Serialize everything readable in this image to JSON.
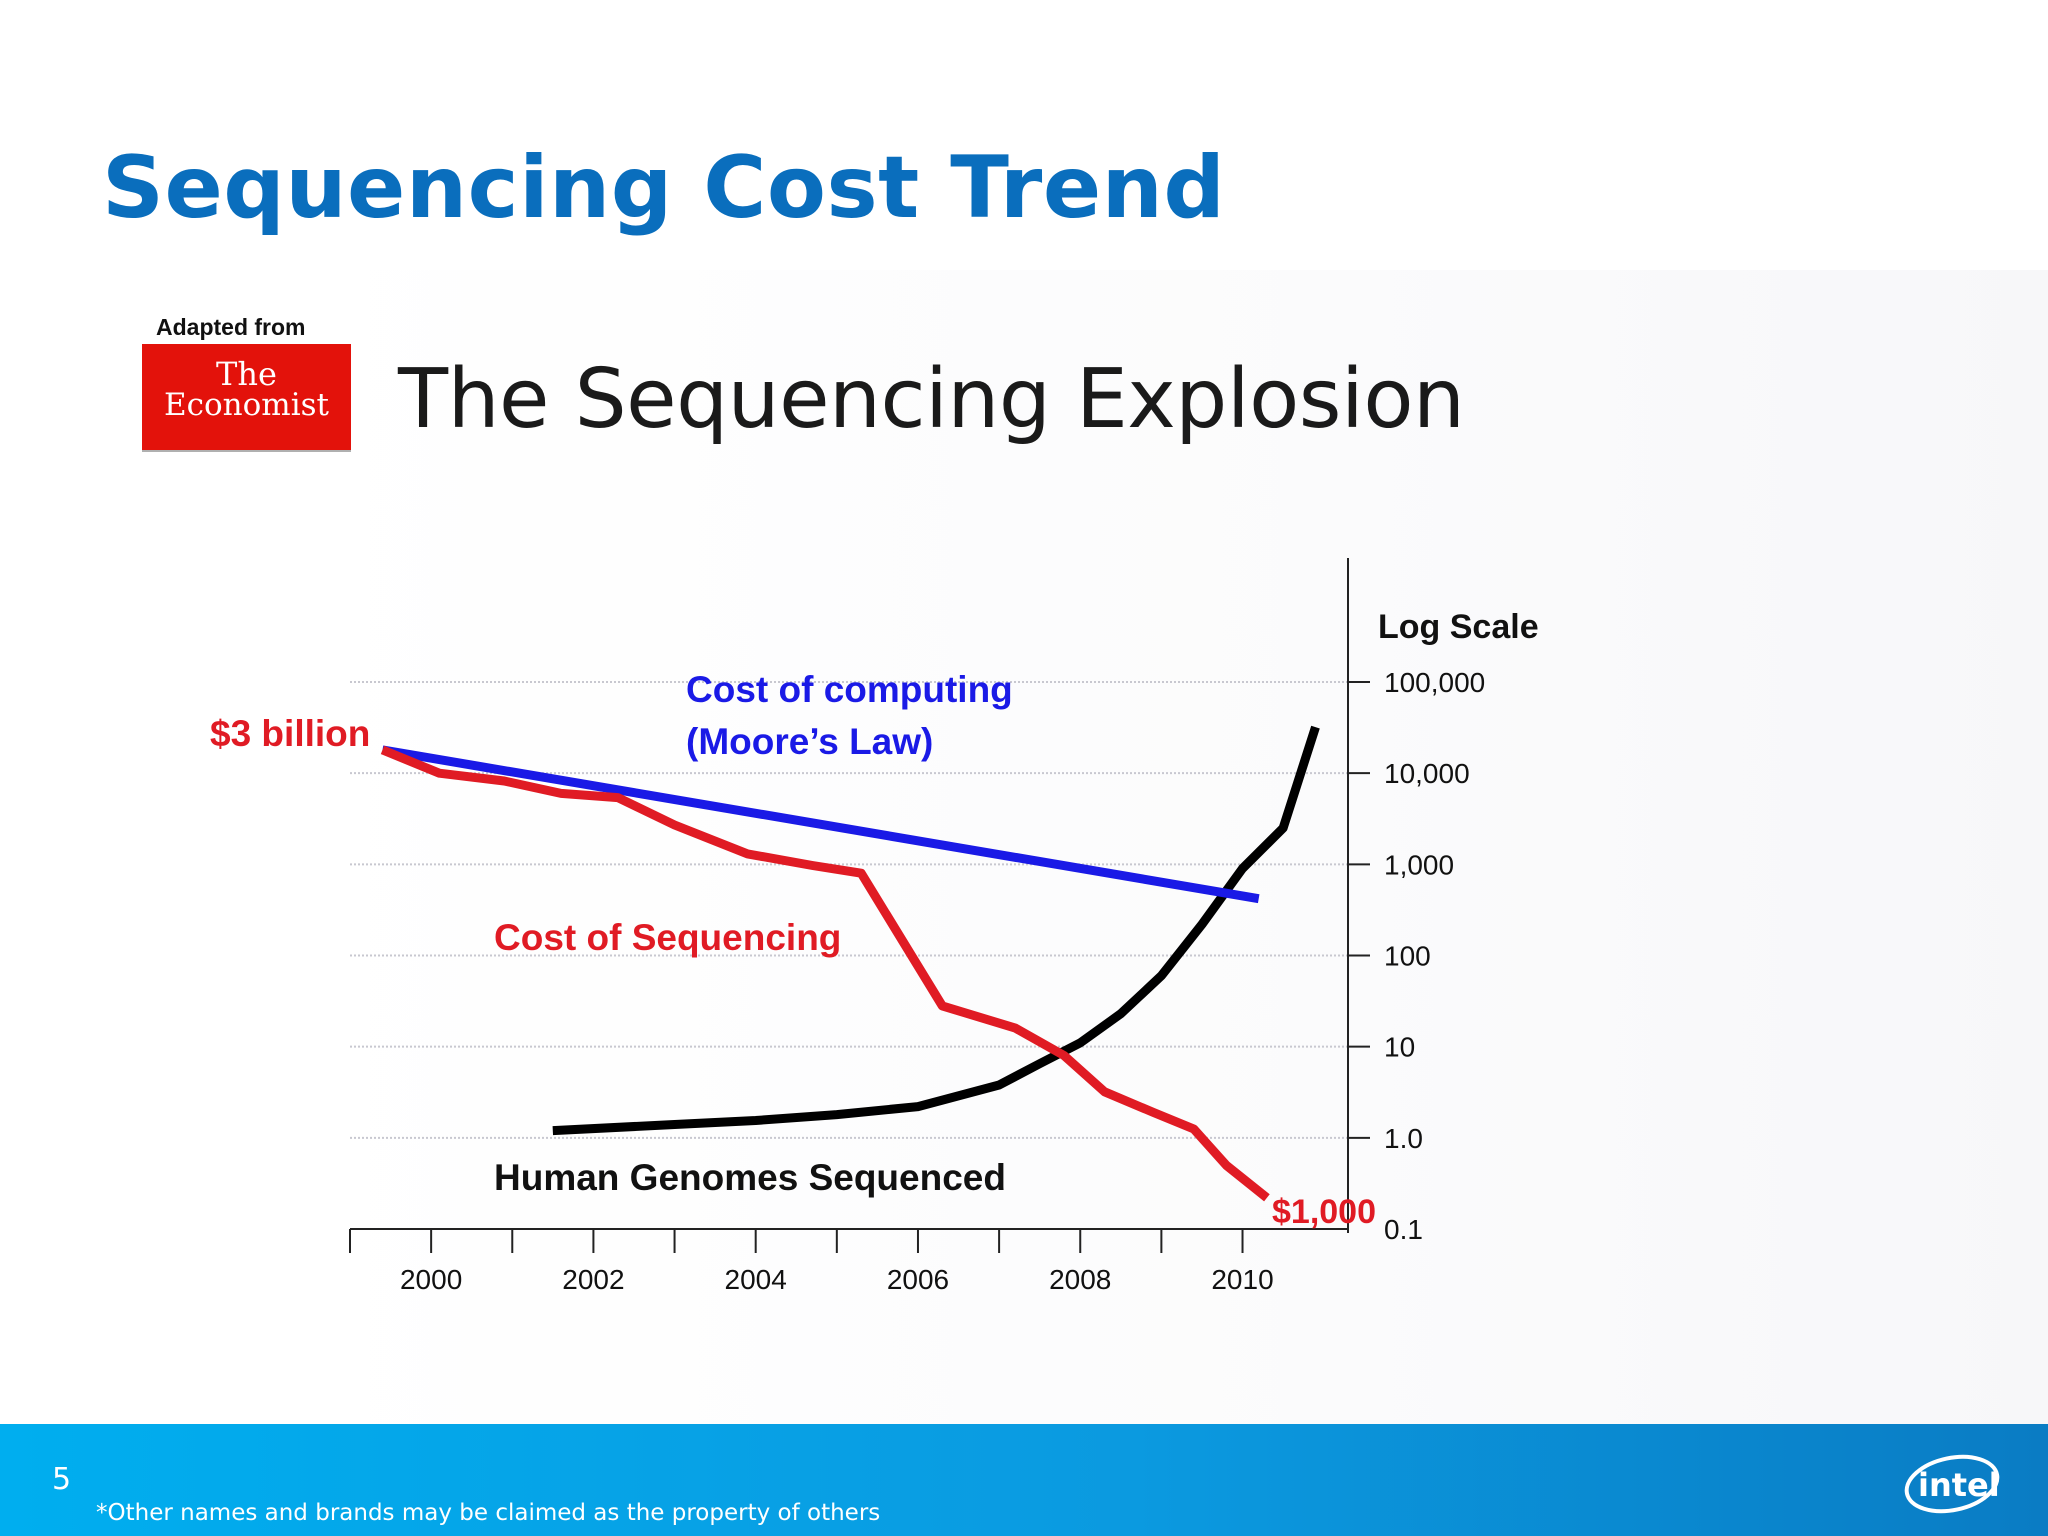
{
  "slide": {
    "title": "Sequencing Cost Trend",
    "page_number": "5",
    "disclaimer": "*Other names and brands may be claimed as the property of others",
    "brand_logo": "intel"
  },
  "figure": {
    "adapted_from": "Adapted from",
    "source_logo_line1": "The",
    "source_logo_line2": "Economist",
    "title": "The Sequencing Explosion"
  },
  "colors": {
    "title_blue": "#0a6ebd",
    "computing": "#1a1ae6",
    "sequencing": "#e01b24",
    "genomes": "#000000",
    "economist_red": "#e3120b"
  },
  "chart_data": {
    "type": "line",
    "title": "The Sequencing Explosion",
    "ylabel": "Log Scale",
    "y_scale": "log",
    "ylim": [
      0.1,
      100000
    ],
    "y_ticks": [
      {
        "value": 100000,
        "label": "100,000"
      },
      {
        "value": 10000,
        "label": "10,000"
      },
      {
        "value": 1000,
        "label": "1,000"
      },
      {
        "value": 100,
        "label": "100"
      },
      {
        "value": 10,
        "label": "10"
      },
      {
        "value": 1,
        "label": "1.0"
      },
      {
        "value": 0.1,
        "label": "0.1"
      }
    ],
    "xlim": [
      1999,
      2011.3
    ],
    "x_tick_labels": [
      "2000",
      "2002",
      "2004",
      "2006",
      "2008",
      "2010"
    ],
    "grid": true,
    "series": [
      {
        "name": "Cost of computing (Moore's Law)",
        "label_lines": [
          "Cost of computing",
          "(Moore’s Law)"
        ],
        "color_key": "computing",
        "x": [
          1999.4,
          2010.2
        ],
        "y": [
          18000,
          420
        ]
      },
      {
        "name": "Cost of Sequencing",
        "label_lines": [
          "Cost of Sequencing"
        ],
        "color_key": "sequencing",
        "x": [
          1999.4,
          2000.1,
          2000.9,
          2001.6,
          2002.3,
          2003,
          2003.9,
          2004.7,
          2005.3,
          2006.3,
          2007.2,
          2007.8,
          2008.3,
          2008.9,
          2009.4,
          2009.8,
          2010.3
        ],
        "y": [
          18000,
          10000,
          8200,
          6000,
          5400,
          2700,
          1300,
          970,
          800,
          28,
          16,
          8,
          3.2,
          1.9,
          1.25,
          0.5,
          0.22
        ],
        "start_label": "$3 billion",
        "end_label": "$1,000"
      },
      {
        "name": "Human Genomes Sequenced",
        "label_lines": [
          "Human Genomes Sequenced"
        ],
        "color_key": "genomes",
        "x": [
          2001.5,
          2003,
          2004,
          2005,
          2006,
          2007,
          2007.5,
          2008,
          2008.5,
          2009,
          2009.5,
          2010,
          2010.5,
          2010.9
        ],
        "y": [
          1.2,
          1.4,
          1.55,
          1.8,
          2.2,
          3.8,
          6.5,
          11,
          23,
          60,
          220,
          900,
          2500,
          32000
        ]
      }
    ]
  }
}
